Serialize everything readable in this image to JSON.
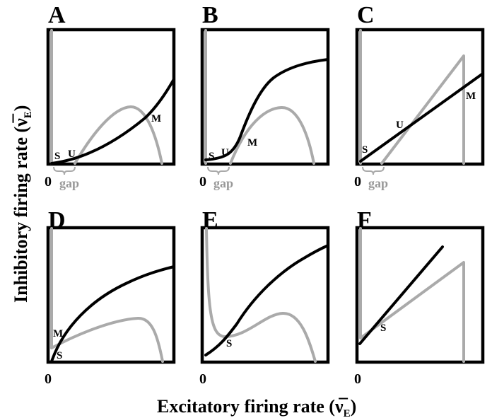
{
  "axes": {
    "x_title": "Excitatory firing rate (ν̅",
    "x_sub": "E",
    "x_close": ")",
    "y_title": "Inhibitory firing rate (ν̅",
    "y_sub": "E",
    "y_close": ")"
  },
  "panels": [
    {
      "label": "A",
      "zero": "0",
      "gap": "gap",
      "points": [
        "S",
        "U",
        "M"
      ]
    },
    {
      "label": "B",
      "zero": "0",
      "gap": "gap",
      "points": [
        "S",
        "U",
        "M"
      ]
    },
    {
      "label": "C",
      "zero": "0",
      "gap": "gap",
      "points": [
        "S",
        "U",
        "M"
      ]
    },
    {
      "label": "D",
      "zero": "0",
      "points": [
        "M",
        "S"
      ]
    },
    {
      "label": "E",
      "zero": "0",
      "points": [
        "S"
      ]
    },
    {
      "label": "F",
      "zero": "0",
      "points": [
        "S"
      ]
    }
  ],
  "colors": {
    "nullcline_1": "#000000",
    "nullcline_2": "#aaaaaa"
  }
}
